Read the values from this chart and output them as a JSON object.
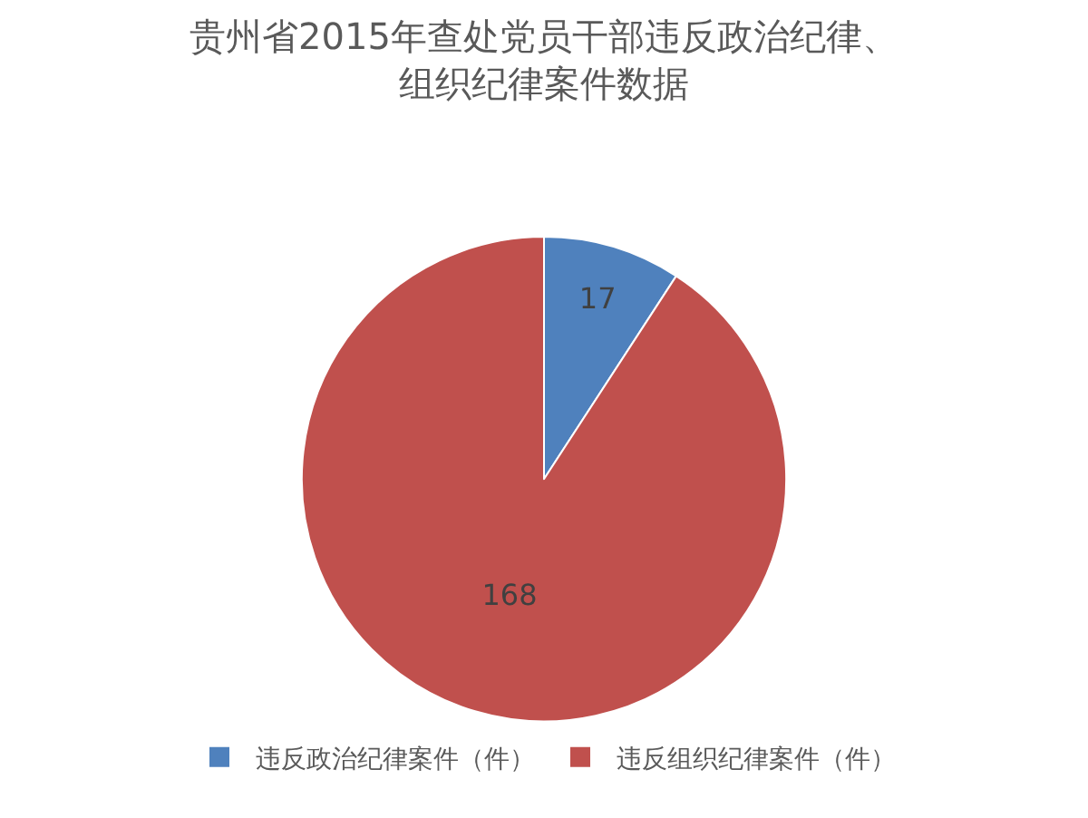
{
  "chart_data": {
    "type": "pie",
    "title": "贵州省2015年查处党员干部违反政治纪律、组织纪律案件数据",
    "categories": [
      "违反政治纪律案件（件）",
      "违反组织纪律案件（件）"
    ],
    "values": [
      17,
      168
    ],
    "colors": [
      "#4f81bd",
      "#c0504d"
    ],
    "data_labels": true,
    "legend": "bottom"
  }
}
